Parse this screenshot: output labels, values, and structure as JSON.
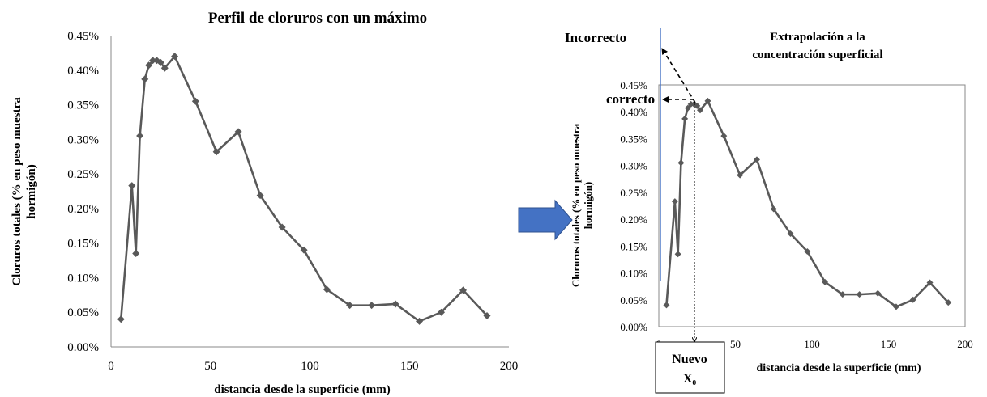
{
  "chart_data": [
    {
      "type": "line",
      "title": "Perfil de cloruros con un máximo",
      "xlabel": "distancia desde la superficie (mm)",
      "ylabel_lines": [
        "Cloruros totales (% en peso muestra",
        "hormigón)"
      ],
      "xlim": [
        0,
        200
      ],
      "ylim": [
        0,
        0.45
      ],
      "x_ticks": [
        "0",
        "50",
        "100",
        "150",
        "200"
      ],
      "y_ticks": [
        "0.00%",
        "0.05%",
        "0.10%",
        "0.15%",
        "0.20%",
        "0.25%",
        "0.30%",
        "0.35%",
        "0.40%",
        "0.45%"
      ],
      "grid": false,
      "series_color": "#595959",
      "series": [
        {
          "x": [
            5,
            10.5,
            12.5,
            14.5,
            17,
            19,
            21,
            23,
            25,
            27,
            32,
            42.5,
            53,
            64,
            75,
            86,
            97,
            108.5,
            120,
            131,
            143,
            155,
            166,
            177,
            189
          ],
          "y": [
            0.0004,
            0.00233,
            0.00135,
            0.00305,
            0.00387,
            0.00407,
            0.00414,
            0.00414,
            0.00411,
            0.00403,
            0.0042,
            0.00355,
            0.00282,
            0.00311,
            0.00219,
            0.00173,
            0.0014,
            0.00083,
            0.0006,
            0.0006,
            0.00062,
            0.00037,
            0.0005,
            0.00082,
            0.00045
          ]
        }
      ]
    },
    {
      "type": "line",
      "title": "Extrapolación a la concentración superficial",
      "title_lines": [
        "Extrapolación a la",
        "concentración superficial"
      ],
      "xlabel": "distancia desde la superficie (mm)",
      "ylabel_lines": [
        "Cloruros totales (% en peso muestra",
        "hormigón)"
      ],
      "xlim": [
        0,
        200
      ],
      "ylim": [
        0,
        0.45
      ],
      "x_ticks": [
        "0",
        "50",
        "100",
        "150",
        "200"
      ],
      "y_ticks": [
        "0.00%",
        "0.05%",
        "0.10%",
        "0.15%",
        "0.20%",
        "0.25%",
        "0.30%",
        "0.35%",
        "0.40%",
        "0.45%"
      ],
      "grid": false,
      "series_color": "#595959",
      "series": [
        {
          "x": [
            5,
            10.5,
            12.5,
            14.5,
            17,
            19,
            21,
            23,
            25,
            27,
            32,
            42.5,
            53,
            64,
            75,
            86,
            97,
            108.5,
            120,
            131,
            143,
            155,
            166,
            177,
            189
          ],
          "y": [
            0.0004,
            0.00233,
            0.00135,
            0.00305,
            0.00387,
            0.00407,
            0.00414,
            0.00414,
            0.00411,
            0.00403,
            0.0042,
            0.00355,
            0.00282,
            0.00311,
            0.00219,
            0.00173,
            0.0014,
            0.00083,
            0.0006,
            0.0006,
            0.00062,
            0.00037,
            0.0005,
            0.00082,
            0.00045
          ]
        }
      ],
      "annotations": {
        "incorrect": "Incorrecto",
        "correct": "correcto",
        "new_origin_line1": "Nuevo",
        "new_origin_line2": "X₀",
        "new_origin_x": 23
      }
    }
  ]
}
